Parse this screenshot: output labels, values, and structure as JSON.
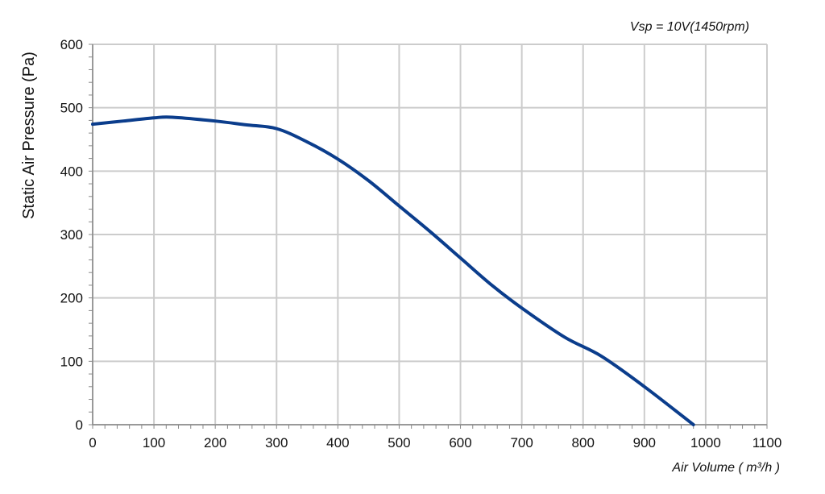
{
  "chart_data": {
    "type": "line",
    "title": "",
    "annotation": "Vsp = 10V(1450rpm)",
    "xlabel": "Air Volume ( m³/h )",
    "ylabel": "Static Air Pressure  (Pa)",
    "xlim": [
      0,
      1100
    ],
    "ylim": [
      0,
      600
    ],
    "xticks": [
      0,
      100,
      200,
      300,
      400,
      500,
      600,
      700,
      800,
      900,
      1000,
      1100
    ],
    "yticks": [
      0,
      100,
      200,
      300,
      400,
      500,
      600
    ],
    "grid": true,
    "series": [
      {
        "x": [
          0,
          50,
          100,
          130,
          200,
          250,
          300,
          350,
          400,
          450,
          500,
          550,
          600,
          650,
          700,
          770,
          830,
          900,
          980
        ],
        "y": [
          474,
          479,
          484,
          485,
          479,
          473,
          467,
          446,
          419,
          385,
          345,
          305,
          263,
          221,
          184,
          138,
          108,
          60,
          0
        ]
      }
    ],
    "colors": {
      "series": "#0b3d8c",
      "grid": "#cccccc",
      "axis": "#888888"
    }
  }
}
